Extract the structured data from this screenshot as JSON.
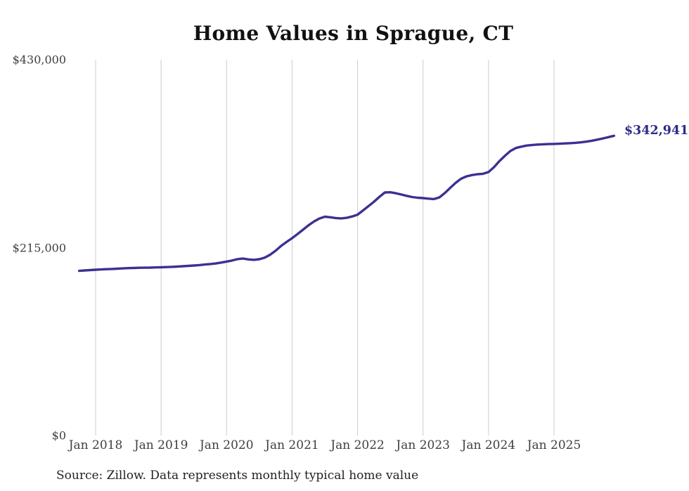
{
  "title": "Home Values in Sprague, CT",
  "source_note": "Source: Zillow. Data represents monthly typical home value",
  "latest_value_label": "$342,941",
  "colors": {
    "background": "#ffffff",
    "line": "#3b3192",
    "latest_label": "#2d2b85",
    "gridline": "#cccccc",
    "axis_label": "#3f3f3f",
    "title": "#111111",
    "source": "#222222"
  },
  "chart_data": {
    "type": "line",
    "title": "Home Values in Sprague, CT",
    "series_name": "Typical home value (monthly)",
    "start_month": "2017-10",
    "end_month": "2025-12",
    "latest_value": 342941,
    "ylim": [
      0,
      430000
    ],
    "grid": "vertical-only",
    "legend": "none",
    "y_ticks": [
      {
        "label": "$0",
        "value": 0
      },
      {
        "label": "$215,000",
        "value": 215000
      },
      {
        "label": "$430,000",
        "value": 430000
      }
    ],
    "x_ticks": [
      {
        "label": "Jan 2018",
        "month_index": 3
      },
      {
        "label": "Jan 2019",
        "month_index": 15
      },
      {
        "label": "Jan 2020",
        "month_index": 27
      },
      {
        "label": "Jan 2021",
        "month_index": 39
      },
      {
        "label": "Jan 2022",
        "month_index": 51
      },
      {
        "label": "Jan 2023",
        "month_index": 63
      },
      {
        "label": "Jan 2024",
        "month_index": 75
      },
      {
        "label": "Jan 2025",
        "month_index": 87
      }
    ],
    "monthly_values": [
      188400,
      188900,
      189300,
      189700,
      190000,
      190300,
      190600,
      190900,
      191200,
      191500,
      191700,
      191900,
      192000,
      192100,
      192300,
      192500,
      192700,
      193000,
      193300,
      193700,
      194100,
      194500,
      195000,
      195600,
      196200,
      196800,
      197900,
      199000,
      200200,
      201800,
      202500,
      201500,
      201000,
      201700,
      203500,
      207000,
      211500,
      217000,
      221500,
      225800,
      230500,
      235500,
      240500,
      244800,
      248300,
      250400,
      249700,
      248800,
      248400,
      249100,
      250600,
      252700,
      257500,
      262500,
      267500,
      273000,
      278100,
      278300,
      277200,
      275800,
      274200,
      272900,
      272100,
      271700,
      271000,
      270500,
      272500,
      277500,
      283500,
      289300,
      293900,
      296600,
      298000,
      299000,
      299500,
      301500,
      307000,
      314000,
      320000,
      325500,
      329000,
      330500,
      331800,
      332400,
      332900,
      333200,
      333500,
      333600,
      333900,
      334200,
      334500,
      334900,
      335500,
      336300,
      337300,
      338600,
      340000,
      341400,
      342941
    ]
  }
}
